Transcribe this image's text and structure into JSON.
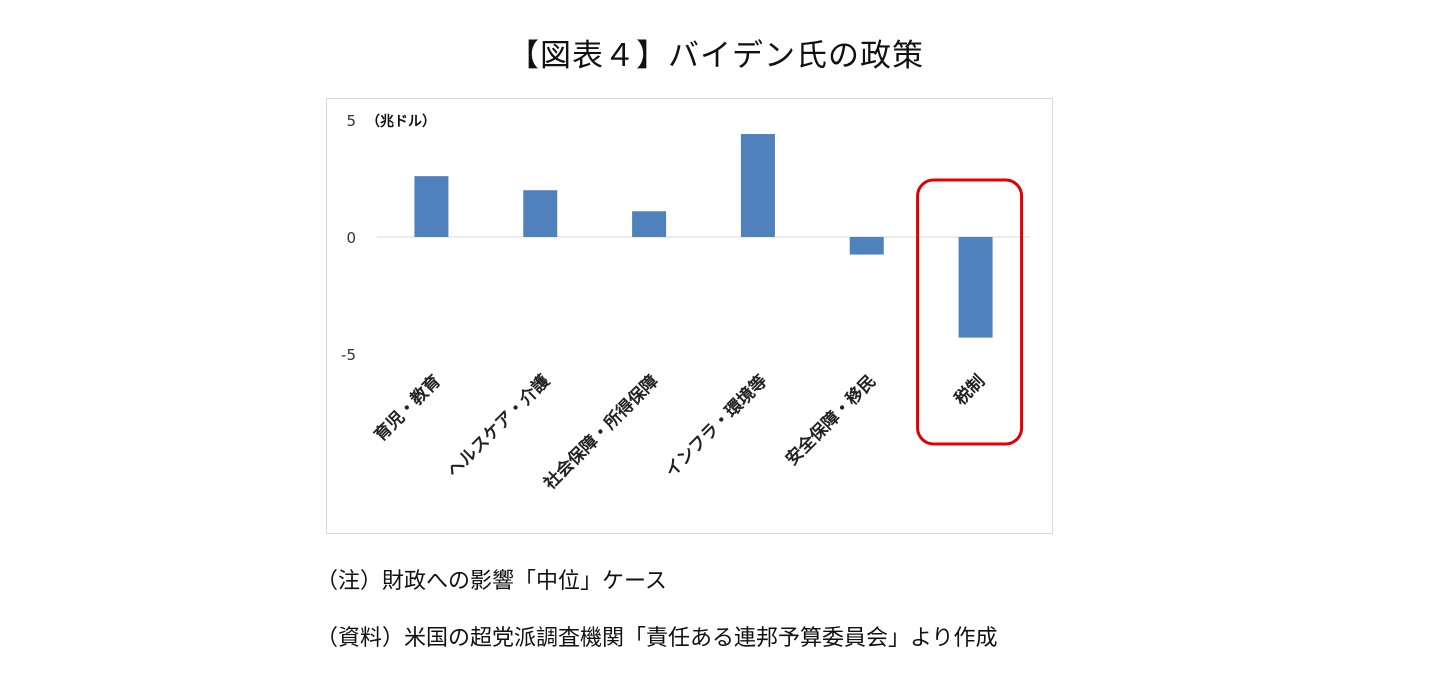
{
  "title": "【図表４】バイデン氏の政策",
  "notes": {
    "note": "（注）財政への影響「中位」ケース",
    "source": "（資料）米国の超党派調査機関「責任ある連邦予算委員会」より作成"
  },
  "chart_data": {
    "type": "bar",
    "unit_label": "（兆ドル）",
    "categories": [
      "育児・教育",
      "ヘルスケア・介護",
      "社会保障・所得保障",
      "インフラ・環境等",
      "安全保障・移民",
      "税制"
    ],
    "values": [
      2.6,
      2.0,
      1.1,
      4.4,
      -0.75,
      -4.3
    ],
    "ylim": [
      -5,
      5
    ],
    "yticks": [
      "5",
      "0",
      "-5"
    ],
    "ytick_values": [
      5,
      0,
      -5
    ],
    "bar_color": "#4f81bd",
    "highlight_category": "税制",
    "highlight_color": "#e00000",
    "grid": false,
    "zero_line": true
  }
}
